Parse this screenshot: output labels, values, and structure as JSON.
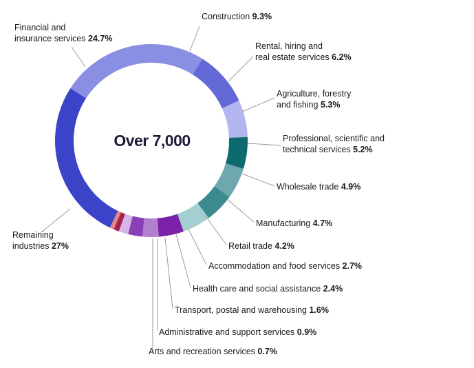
{
  "chart_data": {
    "type": "donut",
    "center_label": "Over 7,000",
    "series": [
      {
        "label": [
          "Construction"
        ],
        "pct": 9.3,
        "pct_text": "9.3%",
        "color": "#6469d8"
      },
      {
        "label": [
          "Rental, hiring and",
          "real estate services"
        ],
        "pct": 6.2,
        "pct_text": "6.2%",
        "color": "#b3b5ee"
      },
      {
        "label": [
          "Agriculture, forestry",
          "and fishing"
        ],
        "pct": 5.3,
        "pct_text": "5.3%",
        "color": "#0d6b70"
      },
      {
        "label": [
          "Professional, scientific and",
          "technical services"
        ],
        "pct": 5.2,
        "pct_text": "5.2%",
        "color": "#6ea8ad"
      },
      {
        "label": [
          "Wholesale trade"
        ],
        "pct": 4.9,
        "pct_text": "4.9%",
        "color": "#3b8a8f"
      },
      {
        "label": [
          "Manufacturing"
        ],
        "pct": 4.7,
        "pct_text": "4.7%",
        "color": "#a3cfd0"
      },
      {
        "label": [
          "Retail trade"
        ],
        "pct": 4.2,
        "pct_text": "4.2%",
        "color": "#7b22a8"
      },
      {
        "label": [
          "Accommodation and food services"
        ],
        "pct": 2.7,
        "pct_text": "2.7%",
        "color": "#b27fcf"
      },
      {
        "label": [
          "Health care and social assistance"
        ],
        "pct": 2.4,
        "pct_text": "2.4%",
        "color": "#8a3fb2"
      },
      {
        "label": [
          "Transport, postal and warehousing"
        ],
        "pct": 1.6,
        "pct_text": "1.6%",
        "color": "#d7b4e8"
      },
      {
        "label": [
          "Administrative and support services"
        ],
        "pct": 0.9,
        "pct_text": "0.9%",
        "color": "#a3224f"
      },
      {
        "label": [
          "Arts and recreation services"
        ],
        "pct": 0.7,
        "pct_text": "0.7%",
        "color": "#e28484"
      },
      {
        "label": [
          "Remaining",
          "industries"
        ],
        "pct": 27,
        "pct_text": "27%",
        "color": "#3b43c9"
      },
      {
        "label": [
          "Financial and",
          "insurance services"
        ],
        "pct": 24.7,
        "pct_text": "24.7%",
        "color": "#8a8fe3"
      }
    ]
  }
}
